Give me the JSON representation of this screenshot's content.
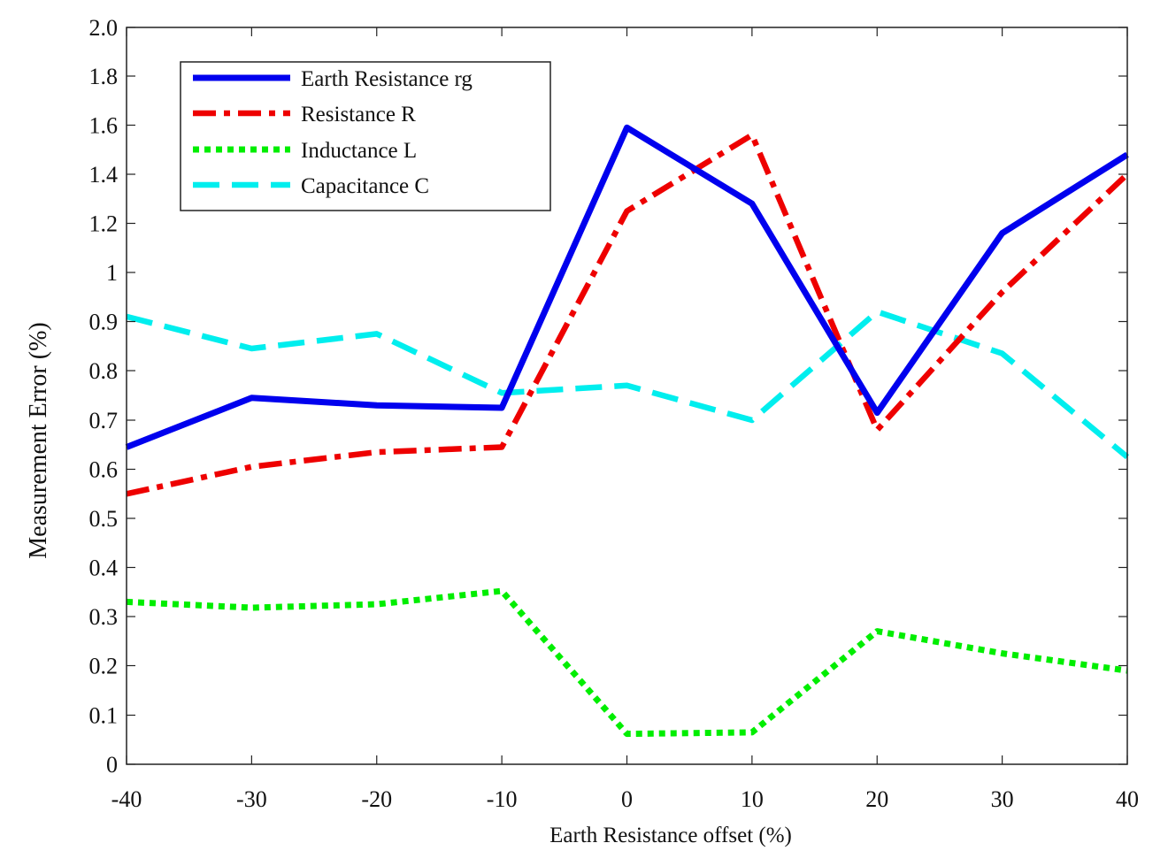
{
  "chart_data": {
    "type": "line",
    "title": "",
    "xlabel": "Earth Resistance offset (%)",
    "ylabel": "Measurement Error (%)",
    "x": [
      -40,
      -30,
      -20,
      -10,
      0,
      10,
      20,
      30,
      40
    ],
    "xlim": [
      -40,
      40
    ],
    "ylim": [
      0,
      2.0
    ],
    "xticks": [
      "-40",
      "-30",
      "-20",
      "-10",
      "0",
      "10",
      "20",
      "30",
      "40"
    ],
    "yticks": [
      "0",
      "0.1",
      "0.2",
      "0.3",
      "0.4",
      "0.5",
      "0.6",
      "0.7",
      "0.8",
      "0.9",
      "1",
      "1.2",
      "1.4",
      "1.6",
      "1.8",
      "2.0"
    ],
    "legend_position": "top-left",
    "grid": false,
    "series": [
      {
        "name": "Earth Resistance rg",
        "color": "#0000ee",
        "style": "solid",
        "values": [
          0.645,
          0.745,
          0.73,
          0.725,
          1.59,
          1.28,
          0.715,
          1.16,
          1.48
        ]
      },
      {
        "name": "Resistance R",
        "color": "#ee0000",
        "style": "dashdot",
        "values": [
          0.55,
          0.605,
          0.635,
          0.645,
          1.25,
          1.56,
          0.68,
          0.96,
          1.4
        ]
      },
      {
        "name": "Inductance L",
        "color": "#00ee00",
        "style": "dotted",
        "values": [
          0.33,
          0.318,
          0.325,
          0.352,
          0.062,
          0.065,
          0.27,
          0.225,
          0.19
        ]
      },
      {
        "name": "Capacitance C",
        "color": "#00eeee",
        "style": "dashed",
        "values": [
          0.91,
          0.845,
          0.875,
          0.755,
          0.77,
          0.7,
          0.92,
          0.835,
          0.625
        ]
      }
    ]
  }
}
